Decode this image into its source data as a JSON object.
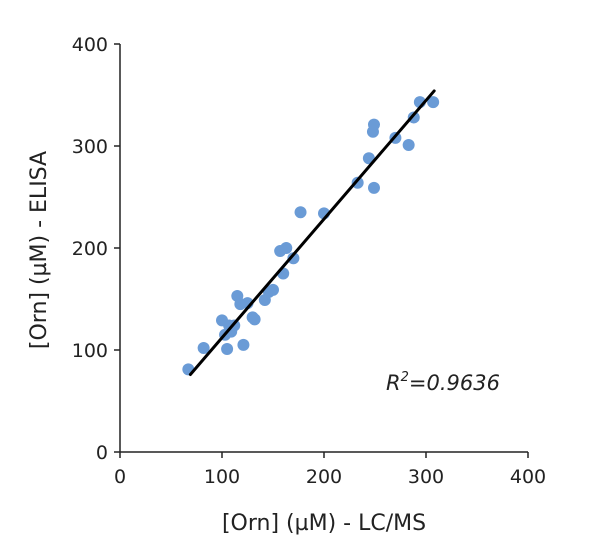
{
  "chart_data": {
    "type": "scatter",
    "title": "",
    "xlabel": "[Orn] (µM) - LC/MS",
    "ylabel": "[Orn] (µM) - ELISA",
    "xlim": [
      0,
      400
    ],
    "ylim": [
      0,
      400
    ],
    "xticks": [
      0,
      100,
      200,
      300,
      400
    ],
    "yticks": [
      0,
      100,
      200,
      300,
      400
    ],
    "xtick_labels": [
      "0",
      "100",
      "200",
      "300",
      "400"
    ],
    "ytick_labels": [
      "0",
      "100",
      "200",
      "300",
      "400"
    ],
    "grid": false,
    "point_color": "#6a9bd6",
    "line_color": "#000000",
    "series": [
      {
        "name": "samples",
        "points": [
          [
            67,
            81
          ],
          [
            82,
            102
          ],
          [
            100,
            129
          ],
          [
            103,
            115
          ],
          [
            105,
            101
          ],
          [
            107,
            124
          ],
          [
            109,
            118
          ],
          [
            112,
            124
          ],
          [
            115,
            153
          ],
          [
            118,
            145
          ],
          [
            121,
            105
          ],
          [
            125,
            146
          ],
          [
            130,
            132
          ],
          [
            132,
            130
          ],
          [
            142,
            149
          ],
          [
            146,
            157
          ],
          [
            150,
            159
          ],
          [
            157,
            197
          ],
          [
            160,
            175
          ],
          [
            163,
            200
          ],
          [
            170,
            190
          ],
          [
            177,
            235
          ],
          [
            200,
            234
          ],
          [
            233,
            264
          ],
          [
            244,
            288
          ],
          [
            248,
            314
          ],
          [
            249,
            321
          ],
          [
            249,
            259
          ],
          [
            270,
            308
          ],
          [
            283,
            301
          ],
          [
            288,
            328
          ],
          [
            294,
            343
          ],
          [
            307,
            343
          ]
        ]
      }
    ],
    "fit_line": {
      "x": [
        69,
        308
      ],
      "y": [
        76,
        354
      ]
    },
    "annotation": {
      "prefix": "R",
      "sup": "2",
      "value": "=0.9636"
    }
  }
}
